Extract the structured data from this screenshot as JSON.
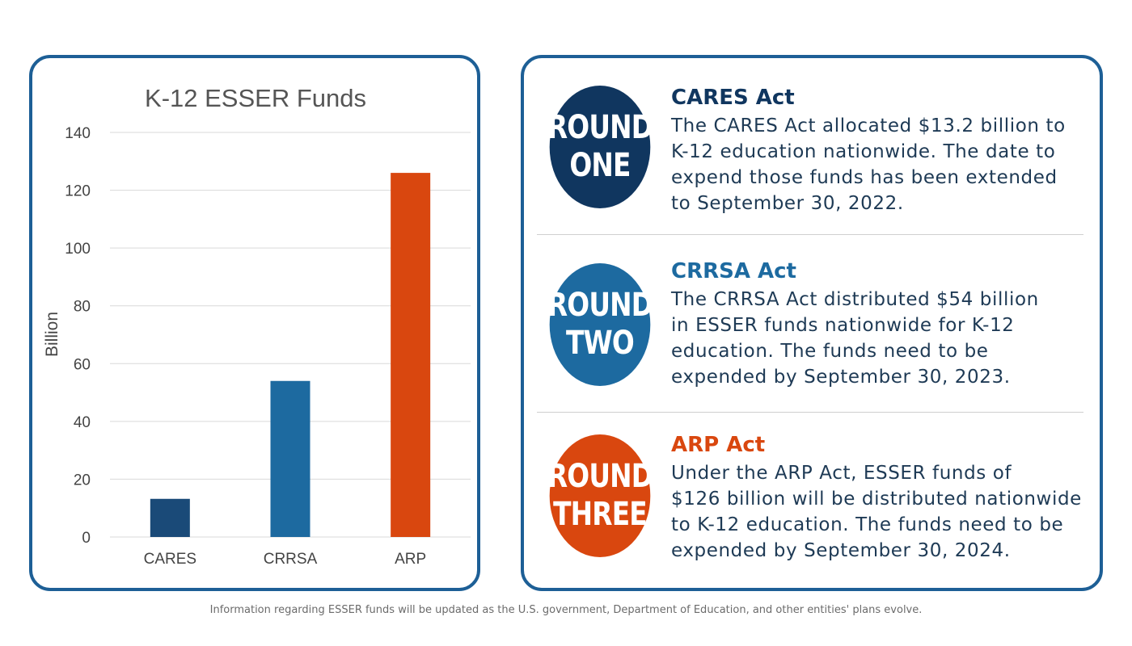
{
  "chart_data": {
    "type": "bar",
    "title": "K-12 ESSER Funds",
    "ylabel": "Billion",
    "xlabel": "",
    "categories": [
      "CARES",
      "CRRSA",
      "ARP"
    ],
    "values": [
      13.2,
      54,
      126
    ],
    "colors": [
      "#1a4a78",
      "#1d6aa0",
      "#d9470f"
    ],
    "ylim": [
      0,
      140
    ],
    "yticks": [
      "0",
      "20",
      "40",
      "60",
      "80",
      "100",
      "120",
      "140"
    ],
    "grid": true,
    "legend": "none"
  },
  "rounds": [
    {
      "badge_line1": "ROUND",
      "badge_line2": "ONE",
      "badge_color": "#10365f",
      "title": "CARES Act",
      "title_color": "#10365f",
      "body": [
        "The CARES Act allocated $13.2 billion to",
        "K-12 education nationwide. The date to",
        "expend those funds has been extended",
        "to September 30, 2022."
      ]
    },
    {
      "badge_line1": "ROUND",
      "badge_line2": "TWO",
      "badge_color": "#1d6aa0",
      "title": "CRRSA Act",
      "title_color": "#1d6aa0",
      "body": [
        "The CRRSA Act distributed $54 billion",
        "in ESSER funds nationwide for K-12",
        "education. The funds need to be",
        "expended by September 30, 2023."
      ]
    },
    {
      "badge_line1": "ROUND",
      "badge_line2": "THREE",
      "badge_color": "#d9470f",
      "title": "ARP Act",
      "title_color": "#d9470f",
      "body": [
        "Under the ARP Act, ESSER funds of",
        "$126 billion will be distributed nationwide",
        "to K-12 education. The funds need to be",
        "expended by September 30, 2024."
      ]
    }
  ],
  "footnote": "Information regarding ESSER funds will be updated as the U.S. government, Department of Education, and other entities' plans evolve."
}
